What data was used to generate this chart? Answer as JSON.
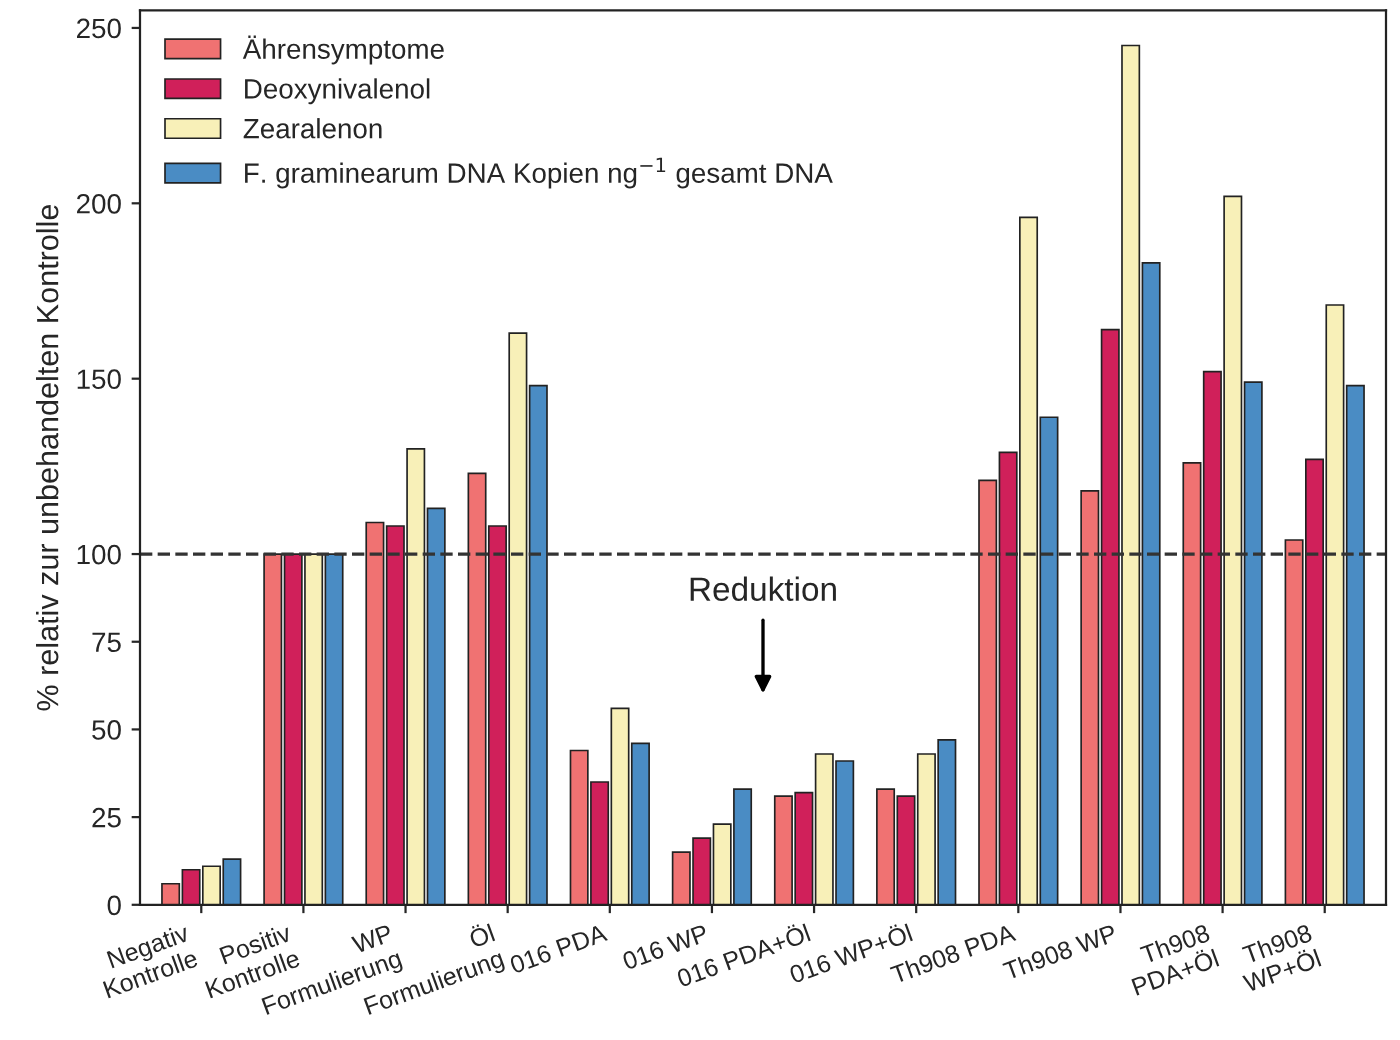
{
  "chart_data": {
    "type": "bar",
    "ylabel": "% relativ zur unbehandelten Kontrolle",
    "categories": [
      "Negativ\nKontrolle",
      "Positiv\nKontrolle",
      "WP\nFormulierung",
      "Öl\nFormulierung",
      "016 PDA",
      "016 WP",
      "016 PDA+Öl",
      "016 WP+Öl",
      "Th908 PDA",
      "Th908 WP",
      "Th908\nPDA+Öl",
      "Th908\nWP+Öl"
    ],
    "series": [
      {
        "name": "Ährensymptome",
        "color": "#f07272",
        "values": [
          6,
          100,
          109,
          123,
          44,
          15,
          31,
          33,
          121,
          118,
          126,
          104
        ]
      },
      {
        "name": "Deoxynivalenol",
        "color": "#d0205a",
        "values": [
          10,
          100,
          108,
          108,
          35,
          19,
          32,
          31,
          129,
          164,
          152,
          127
        ]
      },
      {
        "name": "Zearalenon",
        "color": "#f8f0b8",
        "values": [
          11,
          100,
          130,
          163,
          56,
          23,
          43,
          43,
          196,
          245,
          202,
          171
        ]
      },
      {
        "name": "F. graminearum DNA Kopien ng$^{−1}$ gesamt DNA",
        "color": "#4a8cc4",
        "values": [
          13,
          100,
          113,
          148,
          46,
          33,
          41,
          47,
          139,
          183,
          149,
          148
        ]
      }
    ],
    "ylim": [
      0,
      255
    ],
    "yticks": [
      0,
      25,
      50,
      75,
      100,
      150,
      200,
      250
    ],
    "ref_lines": [
      {
        "axis": "y",
        "value": 100,
        "line_style": "dashed",
        "color": "#333333"
      }
    ],
    "annotations": [
      "Reduktion"
    ],
    "legend": "top left",
    "grid": false
  }
}
